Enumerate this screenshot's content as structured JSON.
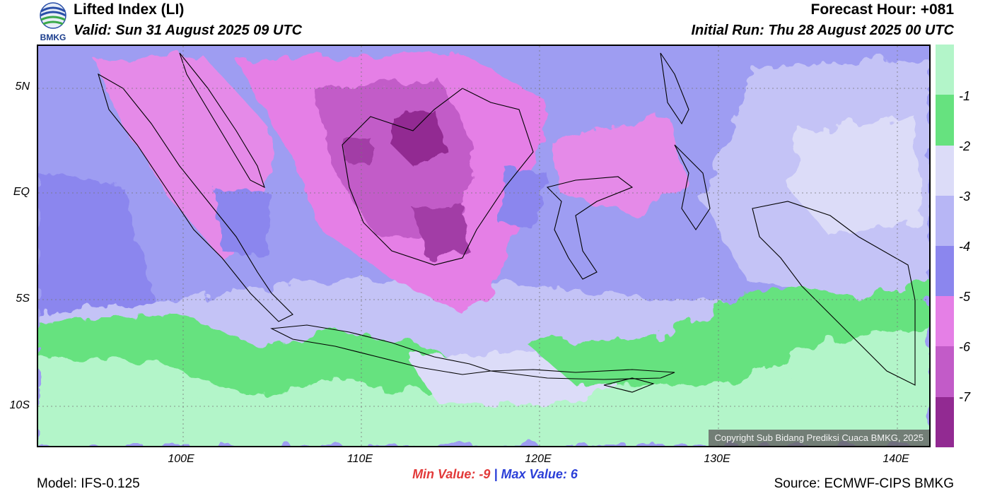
{
  "header": {
    "title": "Lifted Index (LI)",
    "valid": "Valid: Sun 31 August 2025 09 UTC",
    "forecast_hour": "Forecast Hour: +081",
    "initial_run": "Initial Run: Thu 28 August 2025 00 UTC",
    "logo_text": "BMKG"
  },
  "axes": {
    "lat_labels": [
      "5N",
      "EQ",
      "5S",
      "10S"
    ],
    "lon_labels": [
      "100E",
      "110E",
      "120E",
      "130E",
      "140E"
    ]
  },
  "colorbar": {
    "labels": [
      "-1",
      "-2",
      "-3",
      "-4",
      "-5",
      "-6",
      "-7"
    ],
    "colors": [
      "#b3f5c9",
      "#66e27f",
      "#dcdcf8",
      "#b7b6f5",
      "#8b86ee",
      "#e57fe6",
      "#c25bc8",
      "#922a92"
    ]
  },
  "stats": {
    "min_label": "Min Value:",
    "min_value": "-9",
    "separator": "|",
    "max_label": "Max Value:",
    "max_value": "6"
  },
  "footer": {
    "model": "Model: IFS-0.125",
    "source": "Source: ECMWF-CIPS BMKG",
    "copyright": "Copyright Sub Bidang Prediksi Cuaca BMKG, 2025"
  }
}
